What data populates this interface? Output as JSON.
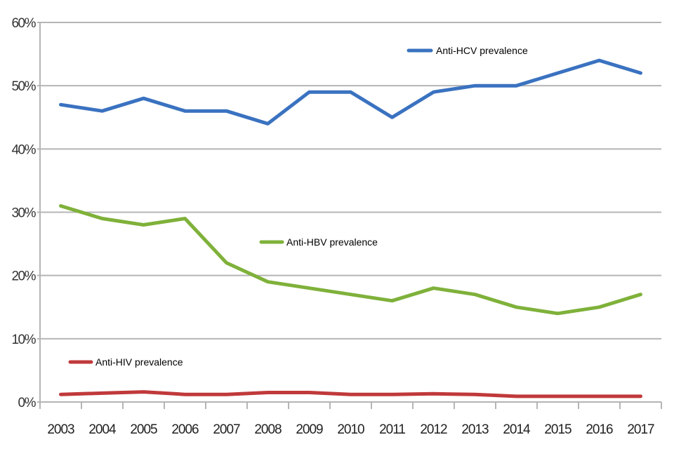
{
  "chart_data": {
    "type": "line",
    "title": "",
    "xlabel": "",
    "ylabel": "",
    "categories": [
      "2003",
      "2004",
      "2005",
      "2006",
      "2007",
      "2008",
      "2009",
      "2010",
      "2011",
      "2012",
      "2013",
      "2014",
      "2015",
      "2016",
      "2017"
    ],
    "y_ticks": [
      "0%",
      "10%",
      "20%",
      "30%",
      "40%",
      "50%",
      "60%"
    ],
    "y_tick_values": [
      0,
      10,
      20,
      30,
      40,
      50,
      60
    ],
    "ylim": [
      0,
      60
    ],
    "grid": true,
    "legend_placement": "inline-near-series",
    "series": [
      {
        "name": "Anti-HCV prevalence",
        "color": "#3a72c0",
        "values": [
          47,
          46,
          48,
          46,
          46,
          44,
          49,
          49,
          45,
          49,
          50,
          50,
          52,
          54,
          52
        ]
      },
      {
        "name": "Anti-HBV prevalence",
        "color": "#7fb13a",
        "values": [
          31,
          29,
          28,
          29,
          22,
          19,
          18,
          17,
          16,
          18,
          17,
          15,
          14,
          15,
          17
        ]
      },
      {
        "name": "Anti-HIV prevalence",
        "color": "#c0393a",
        "values": [
          1.2,
          1.4,
          1.6,
          1.2,
          1.2,
          1.5,
          1.5,
          1.2,
          1.2,
          1.3,
          1.2,
          0.9,
          0.9,
          0.9,
          0.9
        ]
      }
    ]
  }
}
